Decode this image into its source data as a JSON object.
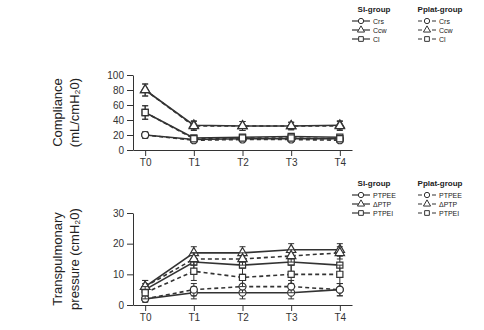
{
  "chart_data": [
    {
      "type": "line",
      "ylabel": [
        "Compliance",
        "(mL/cmH₂0)"
      ],
      "categories": [
        "T0",
        "T1",
        "T2",
        "T3",
        "T4"
      ],
      "ylim": [
        0,
        100
      ],
      "yticks": [
        0,
        20,
        40,
        60,
        80,
        100
      ],
      "legend": "top-right",
      "series": [
        {
          "name": "Crs",
          "group": "SI-group",
          "marker": "circle",
          "line_style": "solid",
          "color": "#333333",
          "values": [
            20,
            14,
            15,
            15,
            15
          ],
          "errors": [
            4,
            2,
            2,
            2,
            2
          ]
        },
        {
          "name": "Ccw",
          "group": "SI-group",
          "marker": "triangle",
          "line_style": "solid",
          "color": "#333333",
          "values": [
            80,
            33,
            32,
            32,
            33
          ],
          "errors": [
            8,
            6,
            6,
            5,
            6
          ]
        },
        {
          "name": "Cl",
          "group": "SI-group",
          "marker": "square",
          "line_style": "solid",
          "color": "#333333",
          "values": [
            50,
            16,
            17,
            18,
            17
          ],
          "errors": [
            9,
            3,
            3,
            3,
            3
          ]
        },
        {
          "name": "Crs",
          "group": "Pplat-group",
          "marker": "circle",
          "line_style": "dashed",
          "color": "#333333",
          "values": [
            20,
            13,
            14,
            14,
            13
          ],
          "errors": [
            4,
            2,
            2,
            2,
            2
          ]
        },
        {
          "name": "Ccw",
          "group": "Pplat-group",
          "marker": "triangle",
          "line_style": "dashed",
          "color": "#333333",
          "values": [
            80,
            32,
            32,
            32,
            32
          ],
          "errors": [
            8,
            6,
            6,
            5,
            6
          ]
        },
        {
          "name": "Cl",
          "group": "Pplat-group",
          "marker": "square",
          "line_style": "dashed",
          "color": "#333333",
          "values": [
            50,
            15,
            16,
            16,
            15
          ],
          "errors": [
            9,
            3,
            3,
            3,
            3
          ]
        }
      ]
    },
    {
      "type": "line",
      "ylabel": [
        "Transpulmonary",
        "pressure (cmH₂0)"
      ],
      "categories": [
        "T0",
        "T1",
        "T2",
        "T3",
        "T4"
      ],
      "ylim": [
        0,
        30
      ],
      "yticks": [
        0,
        10,
        20,
        30
      ],
      "legend": "top-right",
      "series": [
        {
          "name": "PTPEE",
          "group": "SI-group",
          "marker": "circle",
          "line_style": "solid",
          "color": "#333333",
          "values": [
            2,
            4,
            4,
            4,
            5
          ],
          "errors": [
            1,
            2,
            2,
            2,
            2
          ]
        },
        {
          "name": "ΔPTP",
          "group": "SI-group",
          "marker": "triangle",
          "line_style": "solid",
          "color": "#333333",
          "values": [
            6,
            17,
            17,
            18,
            18
          ],
          "errors": [
            2,
            2,
            2,
            2,
            2
          ]
        },
        {
          "name": "PTPEI",
          "group": "SI-group",
          "marker": "square",
          "line_style": "solid",
          "color": "#333333",
          "values": [
            5,
            14,
            13,
            14,
            13
          ],
          "errors": [
            2,
            3,
            3,
            3,
            3
          ]
        },
        {
          "name": "PTPEE",
          "group": "Pplat-group",
          "marker": "circle",
          "line_style": "dashed",
          "color": "#333333",
          "values": [
            2,
            5,
            6,
            6,
            5
          ],
          "errors": [
            1,
            2,
            2,
            2,
            2
          ]
        },
        {
          "name": "ΔPTP",
          "group": "Pplat-group",
          "marker": "triangle",
          "line_style": "dashed",
          "color": "#333333",
          "values": [
            6,
            15,
            15,
            16,
            17
          ],
          "errors": [
            2,
            2,
            2,
            2,
            2
          ]
        },
        {
          "name": "PTPEI",
          "group": "Pplat-group",
          "marker": "square",
          "line_style": "dashed",
          "color": "#333333",
          "values": [
            4,
            11,
            9,
            10,
            10
          ],
          "errors": [
            2,
            3,
            3,
            3,
            3
          ]
        }
      ]
    }
  ]
}
